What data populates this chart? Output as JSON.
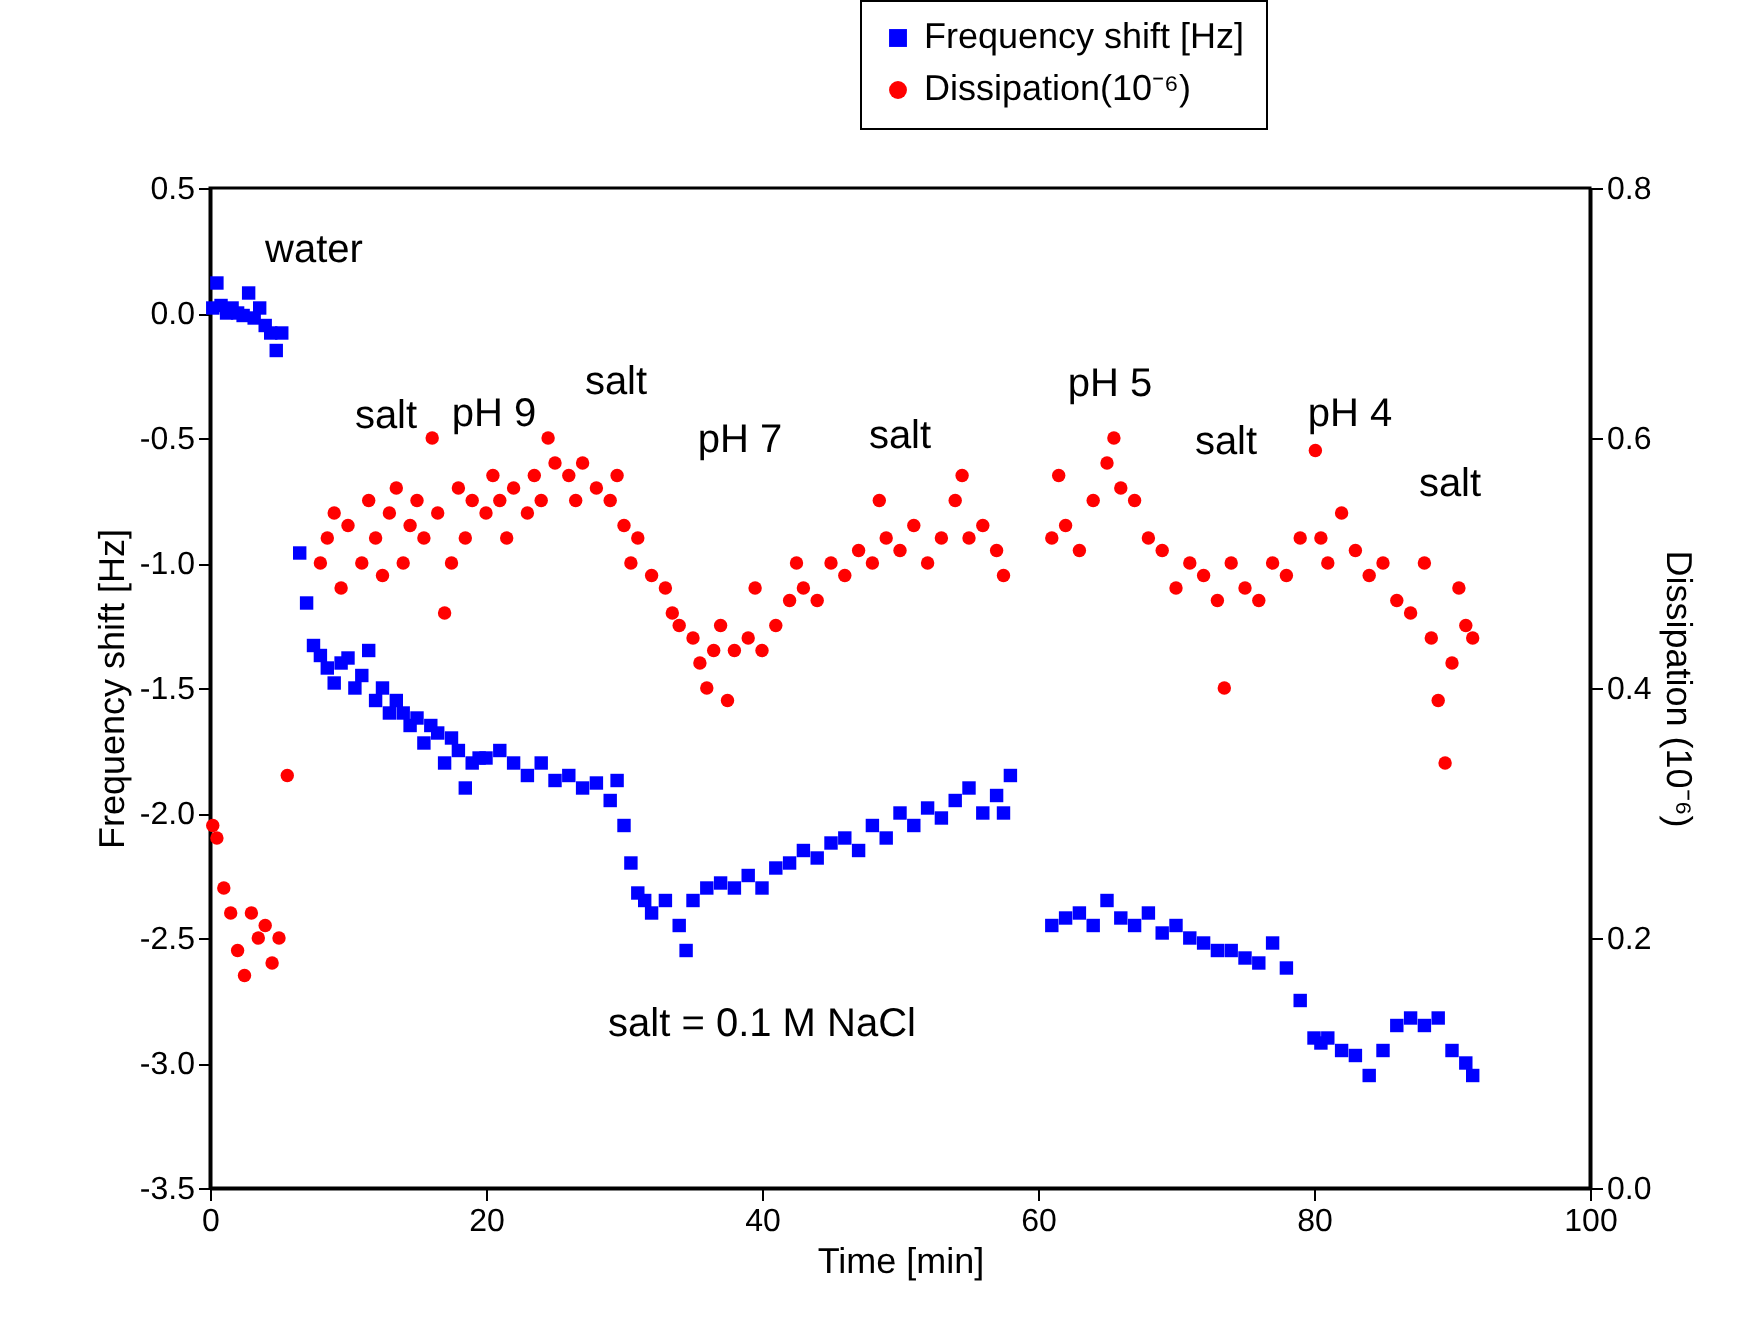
{
  "chart_data": {
    "type": "scatter",
    "xlabel": "Time [min]",
    "ylabel": "Frequency shift [Hz]",
    "y2label": "Dissipation (10⁻⁶)",
    "xlim": [
      0,
      100
    ],
    "xticks": [
      0,
      20,
      40,
      60,
      80,
      100
    ],
    "ylim": [
      -3.5,
      0.5
    ],
    "yticks": [
      -3.5,
      {
        "value": -3,
        "label": "-3.0"
      },
      -2.5,
      {
        "value": -2,
        "label": "-2.0"
      },
      -1.5,
      {
        "value": -1,
        "label": "-1.0"
      },
      -0.5,
      {
        "value": 0,
        "label": "0.0"
      },
      0.5
    ],
    "y2lim": [
      0,
      0.8
    ],
    "y2ticks": [
      {
        "value": 0,
        "label": "0.0"
      },
      0.2,
      0.4,
      0.6,
      0.8
    ],
    "legend": "top right",
    "grid": false,
    "series": [
      {
        "name": "Frequency shift [Hz]",
        "color": "#0000ff",
        "marker": "square",
        "x": [
          0.2,
          0.5,
          0.8,
          1.2,
          1.6,
          2,
          2.4,
          2.8,
          3.2,
          3.6,
          4,
          4.4,
          4.8,
          5.2,
          6.5,
          7,
          7.5,
          8,
          8.5,
          9,
          9.5,
          10,
          10.5,
          11,
          11.5,
          12,
          12.5,
          13,
          13.5,
          14,
          14.5,
          15,
          15.5,
          16,
          16.5,
          17,
          17.5,
          18,
          18.5,
          19,
          19.5,
          20,
          21,
          22,
          23,
          24,
          25,
          26,
          27,
          28,
          29,
          29.5,
          30,
          30.5,
          31,
          31.5,
          32,
          33,
          34,
          34.5,
          35,
          36,
          37,
          38,
          39,
          40,
          41,
          42,
          43,
          44,
          45,
          46,
          47,
          48,
          49,
          50,
          51,
          52,
          53,
          54,
          55,
          56,
          57,
          57.5,
          58,
          61,
          62,
          63,
          64,
          65,
          66,
          67,
          68,
          69,
          70,
          71,
          72,
          73,
          74,
          75,
          76,
          77,
          78,
          79,
          80,
          80.5,
          81,
          82,
          83,
          84,
          85,
          86,
          87,
          88,
          89,
          90,
          91,
          91.5
        ],
        "values": [
          0.02,
          0.12,
          0.03,
          0,
          0.02,
          0,
          -0.01,
          0.08,
          -0.02,
          0.02,
          -0.05,
          -0.08,
          -0.15,
          -0.08,
          -0.96,
          -1.16,
          -1.33,
          -1.37,
          -1.42,
          -1.48,
          -1.4,
          -1.38,
          -1.5,
          -1.45,
          -1.35,
          -1.55,
          -1.5,
          -1.6,
          -1.55,
          -1.6,
          -1.65,
          -1.62,
          -1.72,
          -1.65,
          -1.68,
          -1.8,
          -1.7,
          -1.75,
          -1.9,
          -1.8,
          -1.78,
          -1.78,
          -1.75,
          -1.8,
          -1.85,
          -1.8,
          -1.87,
          -1.85,
          -1.9,
          -1.88,
          -1.95,
          -1.87,
          -2.05,
          -2.2,
          -2.32,
          -2.35,
          -2.4,
          -2.35,
          -2.45,
          -2.55,
          -2.35,
          -2.3,
          -2.28,
          -2.3,
          -2.25,
          -2.3,
          -2.22,
          -2.2,
          -2.15,
          -2.18,
          -2.12,
          -2.1,
          -2.15,
          -2.05,
          -2.1,
          -2,
          -2.05,
          -1.98,
          -2.02,
          -1.95,
          -1.9,
          -2,
          -1.93,
          -2,
          -1.85,
          -2.45,
          -2.42,
          -2.4,
          -2.45,
          -2.35,
          -2.42,
          -2.45,
          -2.4,
          -2.48,
          -2.45,
          -2.5,
          -2.52,
          -2.55,
          -2.55,
          -2.58,
          -2.6,
          -2.52,
          -2.62,
          -2.75,
          -2.9,
          -2.92,
          -2.9,
          -2.95,
          -2.97,
          -3.05,
          -2.95,
          -2.85,
          -2.82,
          -2.85,
          -2.82,
          -2.95,
          -3,
          -3.05
        ]
      },
      {
        "name": "Dissipation(10⁻⁶)",
        "color": "#ff0000",
        "marker": "circle",
        "axis": "y2",
        "x": [
          0.2,
          0.5,
          1,
          1.5,
          2,
          2.5,
          3,
          3.5,
          4,
          4.5,
          5,
          5.6,
          8,
          8.5,
          9,
          9.5,
          10,
          11,
          11.5,
          12,
          12.5,
          13,
          13.5,
          14,
          14.5,
          15,
          15.5,
          16.1,
          16.5,
          17,
          17.5,
          18,
          18.5,
          19,
          20,
          20.5,
          21,
          21.5,
          22,
          23,
          23.5,
          24,
          24.5,
          25,
          26,
          26.5,
          27,
          28,
          29,
          29.5,
          30,
          30.5,
          31,
          32,
          33,
          33.5,
          34,
          35,
          35.5,
          36,
          36.5,
          37,
          37.5,
          38,
          39,
          39.5,
          40,
          41,
          42,
          42.5,
          43,
          44,
          45,
          46,
          47,
          48,
          48.5,
          49,
          50,
          51,
          52,
          53,
          54,
          54.5,
          55,
          56,
          57,
          57.5,
          61,
          61.5,
          62,
          63,
          64,
          65,
          65.5,
          66,
          67,
          68,
          69,
          70,
          71,
          72,
          73,
          73.5,
          74,
          75,
          76,
          77,
          78,
          79,
          80.1,
          80.5,
          81,
          82,
          83,
          84,
          85,
          86,
          87,
          88,
          88.5,
          89,
          89.5,
          90,
          90.5,
          91,
          91.5
        ],
        "values": [
          0.29,
          0.28,
          0.24,
          0.22,
          0.19,
          0.17,
          0.22,
          0.2,
          0.21,
          0.18,
          0.2,
          0.33,
          0.5,
          0.52,
          0.54,
          0.48,
          0.53,
          0.5,
          0.55,
          0.52,
          0.49,
          0.54,
          0.56,
          0.5,
          0.53,
          0.55,
          0.52,
          0.6,
          0.54,
          0.46,
          0.5,
          0.56,
          0.52,
          0.55,
          0.54,
          0.57,
          0.55,
          0.52,
          0.56,
          0.54,
          0.57,
          0.55,
          0.6,
          0.58,
          0.57,
          0.55,
          0.58,
          0.56,
          0.55,
          0.57,
          0.53,
          0.5,
          0.52,
          0.49,
          0.48,
          0.46,
          0.45,
          0.44,
          0.42,
          0.4,
          0.43,
          0.45,
          0.39,
          0.43,
          0.44,
          0.48,
          0.43,
          0.45,
          0.47,
          0.5,
          0.48,
          0.47,
          0.5,
          0.49,
          0.51,
          0.5,
          0.55,
          0.52,
          0.51,
          0.53,
          0.5,
          0.52,
          0.55,
          0.57,
          0.52,
          0.53,
          0.51,
          0.49,
          0.52,
          0.57,
          0.53,
          0.51,
          0.55,
          0.58,
          0.6,
          0.56,
          0.55,
          0.52,
          0.51,
          0.48,
          0.5,
          0.49,
          0.47,
          0.4,
          0.5,
          0.48,
          0.47,
          0.5,
          0.49,
          0.52,
          0.59,
          0.52,
          0.5,
          0.54,
          0.51,
          0.49,
          0.5,
          0.47,
          0.46,
          0.5,
          0.44,
          0.39,
          0.34,
          0.42,
          0.48,
          0.45,
          0.44
        ]
      }
    ],
    "annotations": [
      "water",
      "salt",
      "pH 9",
      "salt",
      "pH 7",
      "salt",
      "pH 5",
      "salt",
      "pH 4",
      "salt",
      "salt = 0.1 M NaCl"
    ]
  }
}
